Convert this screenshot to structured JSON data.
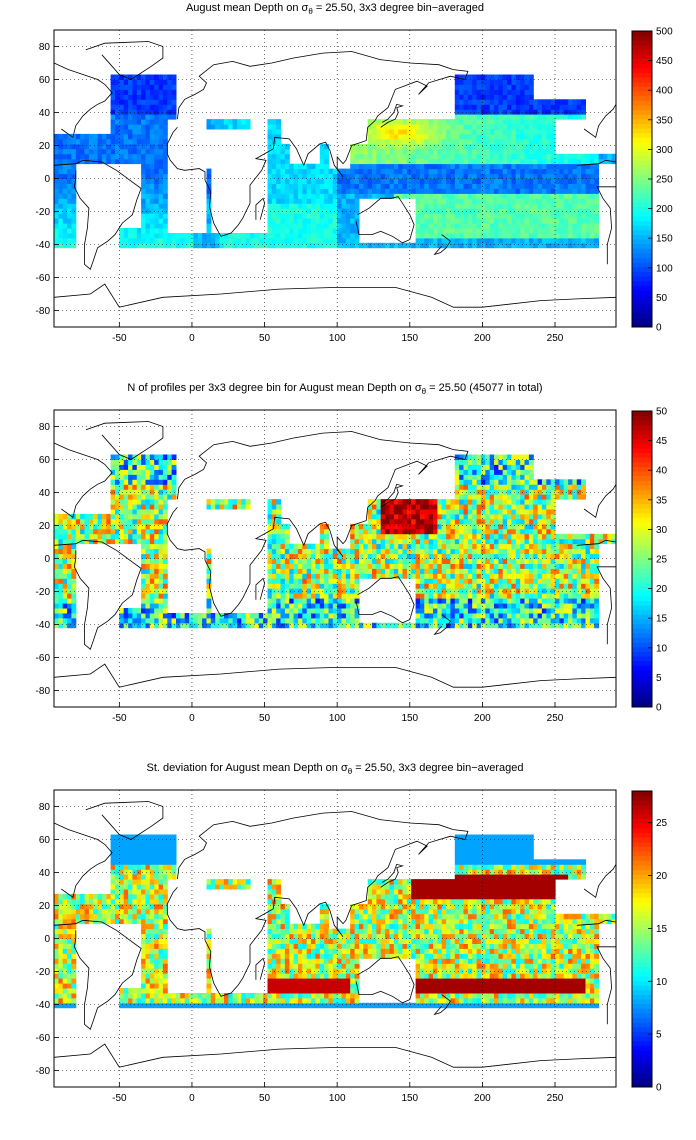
{
  "panels": [
    {
      "id": "mean-depth",
      "title_prefix": "August mean Depth on ",
      "sigma_symbol": "σ",
      "sigma_subscript": "θ",
      "title_suffix": " = 25.50, 3x3 degree bin−averaged",
      "colorbar": {
        "min": 0,
        "max": 500,
        "ticks": [
          0,
          50,
          100,
          150,
          200,
          250,
          300,
          350,
          400,
          450,
          500
        ]
      }
    },
    {
      "id": "profile-count",
      "title_prefix": "N of profiles per 3x3 degree bin for August mean Depth on ",
      "sigma_symbol": "σ",
      "sigma_subscript": "θ",
      "title_suffix": " = 25.50 (45077 in total)",
      "colorbar": {
        "min": 0,
        "max": 50,
        "ticks": [
          0,
          5,
          10,
          15,
          20,
          25,
          30,
          35,
          40,
          45,
          50
        ]
      }
    },
    {
      "id": "std-deviation",
      "title_prefix": "St. deviation for August mean Depth on ",
      "sigma_symbol": "σ",
      "sigma_subscript": "θ",
      "title_suffix": " = 25.50, 3x3 degree bin−averaged",
      "colorbar": {
        "min": 0,
        "max": 28,
        "ticks": [
          0,
          5,
          10,
          15,
          20,
          25
        ]
      }
    }
  ],
  "map_axes": {
    "lon_range": [
      -95,
      292
    ],
    "lat_range": [
      -90,
      90
    ],
    "lon_ticks": [
      -50,
      0,
      50,
      100,
      150,
      200,
      250
    ],
    "lat_ticks": [
      -80,
      -60,
      -40,
      -20,
      0,
      20,
      40,
      60,
      80
    ],
    "grid": "dotted"
  }
}
